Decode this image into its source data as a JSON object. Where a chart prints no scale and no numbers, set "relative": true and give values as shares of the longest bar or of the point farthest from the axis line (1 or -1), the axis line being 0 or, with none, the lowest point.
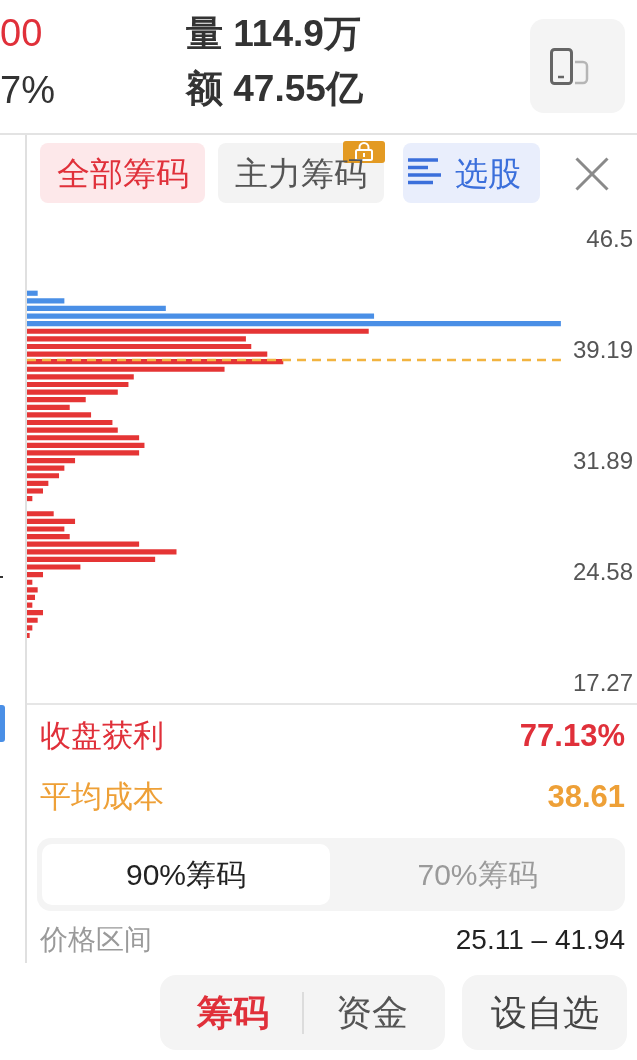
{
  "chart_data": {
    "type": "bar",
    "orientation": "horizontal",
    "relative": true,
    "x": [
      20.5,
      21,
      21.5,
      22,
      22.5,
      23,
      23.5,
      24,
      24.5,
      25,
      25.5,
      26,
      26.5,
      27,
      27.5,
      28,
      28.5,
      29,
      29.5,
      30,
      30.5,
      31,
      31.5,
      32,
      32.5,
      33,
      33.5,
      34,
      34.5,
      35,
      35.5,
      36,
      36.5,
      37,
      37.5,
      38,
      38.5,
      39,
      39.5,
      40,
      40.5,
      41,
      41.5,
      42,
      42.5,
      43
    ],
    "values": [
      0.005,
      0.01,
      0.02,
      0.03,
      0.01,
      0.015,
      0.02,
      0.01,
      0.03,
      0.1,
      0.24,
      0.28,
      0.21,
      0.08,
      0.07,
      0.09,
      0.05,
      0,
      0.01,
      0.03,
      0.04,
      0.06,
      0.07,
      0.09,
      0.21,
      0.22,
      0.21,
      0.17,
      0.16,
      0.12,
      0.08,
      0.11,
      0.17,
      0.19,
      0.2,
      0.37,
      0.48,
      0.45,
      0.42,
      0.41,
      0.64,
      1,
      0.65,
      0.26,
      0.07,
      0.02
    ],
    "colors": [
      "#e53535",
      "#e53535",
      "#e53535",
      "#e53535",
      "#e53535",
      "#e53535",
      "#e53535",
      "#e53535",
      "#e53535",
      "#e53535",
      "#e53535",
      "#e53535",
      "#e53535",
      "#e53535",
      "#e53535",
      "#e53535",
      "#e53535",
      "#e53535",
      "#e53535",
      "#e53535",
      "#e53535",
      "#e53535",
      "#e53535",
      "#e53535",
      "#e53535",
      "#e53535",
      "#e53535",
      "#e53535",
      "#e53535",
      "#e53535",
      "#e53535",
      "#e53535",
      "#e53535",
      "#e53535",
      "#e53535",
      "#e53535",
      "#e53535",
      "#e53535",
      "#e53535",
      "#e53535",
      "#e53535",
      "#4a8fe6",
      "#4a8fe6",
      "#4a8fe6",
      "#4a8fe6",
      "#4a8fe6"
    ],
    "ylim": [
      17.27,
      46.5
    ],
    "yticks": [
      17.27,
      24.58,
      31.89,
      39.19,
      46.5
    ],
    "ref_lines": [
      {
        "axis": "y",
        "value": 38.61,
        "color": "#f2b440",
        "line_style": "dashed"
      }
    ],
    "annotations": [
      "00",
      "7%",
      "量 114.9万",
      "额 47.55亿",
      "全部筹码",
      "主力筹码",
      "选股",
      "收盘获利",
      "77.13%",
      "平均成本",
      "38.61",
      "90%筹码",
      "70%筹码",
      "价格区间",
      "25.11 – 41.94",
      "筹码",
      "资金",
      "设自选"
    ]
  }
}
